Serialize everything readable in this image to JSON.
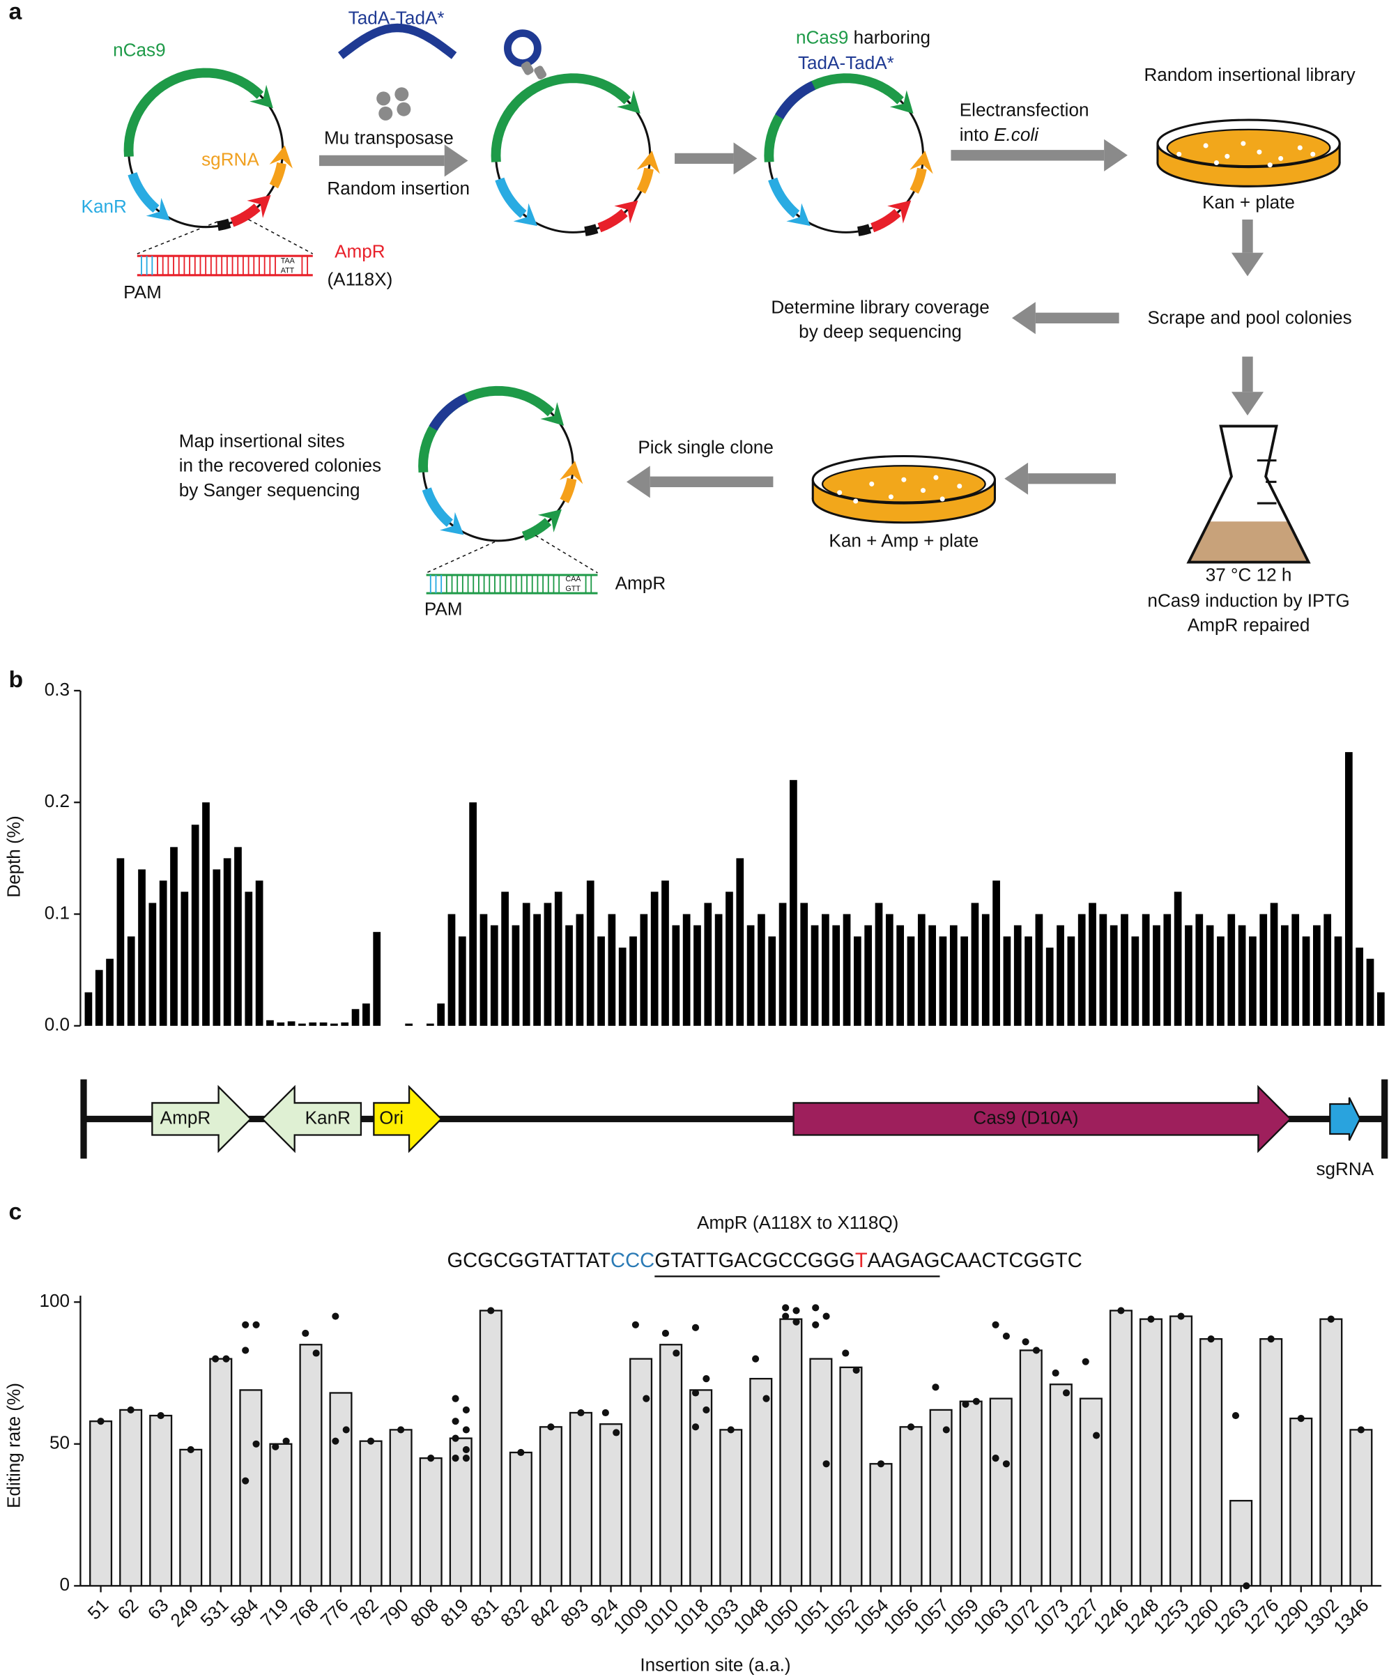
{
  "panel_labels": [
    "a",
    "b",
    "c"
  ],
  "diagram": {
    "tadA": "TadA-TadA*",
    "ncas9": "nCas9",
    "sgrna": "sgRNA",
    "kanr": "KanR",
    "ampr": "AmpR",
    "a118x": "(A118X)",
    "pam": "PAM",
    "dna_top": "TAA",
    "dna_bottom": "ATT",
    "mu": "Mu transposase",
    "random_insertion": "Random insertion",
    "harboring": [
      "nCas9",
      " harboring"
    ],
    "tadA2": "TadA-TadA*",
    "electro": [
      "Electransfection",
      "into ",
      "E.coli"
    ],
    "library": "Random insertional library",
    "kan_plate": "Kan + plate",
    "coverage": [
      "Determine library coverage",
      "by deep sequencing"
    ],
    "scrape": "Scrape and pool colonies",
    "map": [
      "Map insertional sites",
      "in the recovered colonies",
      "by Sanger sequencing"
    ],
    "pick": "Pick single clone",
    "kan_amp_plate": "Kan + Amp + plate",
    "flask": [
      "37 °C 12 h",
      "nCas9 induction by IPTG",
      "AmpR repaired"
    ],
    "pam2": "PAM",
    "ampr2": "AmpR",
    "dna2_top": "CAA",
    "dna2_bottom": "GTT"
  },
  "genome_map": {
    "features": [
      {
        "label": "AmpR",
        "color": "#dff0d3"
      },
      {
        "label": "KanR",
        "color": "#dff0d3"
      },
      {
        "label": "Ori",
        "color": "#ffee00"
      },
      {
        "label": "Cas9 (D10A)",
        "color": "#9e1f5c"
      },
      {
        "label": "sgRNA",
        "color": "#29a3de"
      }
    ]
  },
  "chart_data": [
    {
      "type": "bar",
      "ylabel": "Depth (%)",
      "color": "#000000",
      "ylim": [
        0,
        0.3
      ],
      "yticks": [
        {
          "value": 0,
          "label": "0.0"
        },
        0.1,
        0.2,
        0.3
      ],
      "values": [
        0.03,
        0.05,
        0.06,
        0.15,
        0.08,
        0.14,
        0.11,
        0.13,
        0.16,
        0.12,
        0.18,
        0.2,
        0.14,
        0.15,
        0.16,
        0.12,
        0.13,
        0.005,
        0.003,
        0.004,
        0.002,
        0.003,
        0.003,
        0.002,
        0.003,
        0.015,
        0.02,
        0.084,
        0,
        0,
        0.002,
        0,
        0.002,
        0.02,
        0.1,
        0.08,
        0.2,
        0.1,
        0.09,
        0.12,
        0.09,
        0.11,
        0.1,
        0.11,
        0.12,
        0.09,
        0.1,
        0.13,
        0.08,
        0.1,
        0.07,
        0.08,
        0.1,
        0.12,
        0.13,
        0.09,
        0.1,
        0.09,
        0.11,
        0.1,
        0.12,
        0.15,
        0.09,
        0.1,
        0.08,
        0.11,
        0.22,
        0.11,
        0.09,
        0.1,
        0.09,
        0.1,
        0.08,
        0.09,
        0.11,
        0.1,
        0.09,
        0.08,
        0.1,
        0.09,
        0.08,
        0.09,
        0.08,
        0.11,
        0.1,
        0.13,
        0.08,
        0.09,
        0.08,
        0.1,
        0.07,
        0.09,
        0.08,
        0.1,
        0.11,
        0.1,
        0.09,
        0.1,
        0.08,
        0.1,
        0.09,
        0.1,
        0.12,
        0.09,
        0.1,
        0.09,
        0.08,
        0.1,
        0.09,
        0.08,
        0.1,
        0.11,
        0.09,
        0.1,
        0.08,
        0.09,
        0.1,
        0.08,
        0.245,
        0.07,
        0.06,
        0.03
      ]
    },
    {
      "type": "bar",
      "title": "AmpR (A118X to X118Q)",
      "sequence": [
        {
          "text": "GCGCGGTATTAT",
          "color": "#111111",
          "underlined": false
        },
        {
          "text": "CCC",
          "color": "#2a7ab5",
          "underlined": false
        },
        {
          "text": "GTATTGACGCCGGG",
          "color": "#111111",
          "underlined": true
        },
        {
          "text": "T",
          "color": "#e8262a",
          "underlined": true
        },
        {
          "text": "AAGAG",
          "color": "#111111",
          "underlined": true
        },
        {
          "text": "CAACTCGGTC",
          "color": "#111111",
          "underlined": false
        }
      ],
      "xlabel": "Insertion site (a.a.)",
      "ylabel": "Editing rate (%)",
      "color": "#e0e0e0",
      "ylim": [
        0,
        100
      ],
      "yticks": [
        0,
        50,
        100
      ],
      "categories": [
        "51",
        "62",
        "63",
        "249",
        "531",
        "584",
        "719",
        "768",
        "776",
        "782",
        "790",
        "808",
        "819",
        "831",
        "832",
        "842",
        "893",
        "924",
        "1009",
        "1010",
        "1018",
        "1033",
        "1048",
        "1050",
        "1051",
        "1052",
        "1054",
        "1056",
        "1057",
        "1059",
        "1063",
        "1072",
        "1073",
        "1227",
        "1246",
        "1248",
        "1253",
        "1260",
        "1263",
        "1276",
        "1290",
        "1302",
        "1346"
      ],
      "values": [
        58,
        62,
        60,
        48,
        80,
        69,
        50,
        85,
        68,
        51,
        55,
        45,
        52,
        97,
        47,
        56,
        61,
        57,
        80,
        85,
        69,
        55,
        73,
        94,
        80,
        77,
        43,
        56,
        62,
        65,
        66,
        83,
        71,
        66,
        97,
        94,
        95,
        87,
        30,
        87,
        59,
        94,
        55
      ],
      "points": [
        [
          58
        ],
        [
          62
        ],
        [
          60
        ],
        [
          48
        ],
        [
          80,
          80
        ],
        [
          92,
          92,
          83,
          50,
          37
        ],
        [
          49,
          51
        ],
        [
          89,
          82
        ],
        [
          95,
          55,
          51
        ],
        [
          51
        ],
        [
          55
        ],
        [
          45
        ],
        [
          66,
          62,
          58,
          55,
          52,
          48,
          45,
          45
        ],
        [
          97
        ],
        [
          47
        ],
        [
          56
        ],
        [
          61
        ],
        [
          61,
          54
        ],
        [
          92,
          66
        ],
        [
          89,
          82
        ],
        [
          91,
          73,
          68,
          62,
          56
        ],
        [
          55
        ],
        [
          80,
          66
        ],
        [
          98,
          97,
          95,
          93
        ],
        [
          98,
          95,
          92,
          43
        ],
        [
          82,
          76
        ],
        [
          43
        ],
        [
          56
        ],
        [
          70,
          55
        ],
        [
          64,
          65
        ],
        [
          92,
          88,
          45,
          43
        ],
        [
          86,
          83
        ],
        [
          75,
          68
        ],
        [
          79,
          53
        ],
        [
          97
        ],
        [
          94
        ],
        [
          95
        ],
        [
          87
        ],
        [
          60,
          0
        ],
        [
          87
        ],
        [
          59
        ],
        [
          94
        ],
        [
          55
        ]
      ]
    }
  ]
}
